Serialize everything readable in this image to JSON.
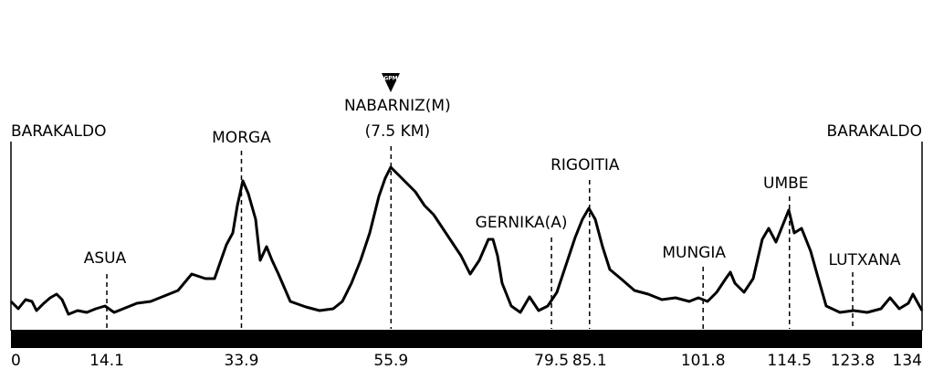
{
  "profile": {
    "gpm_label": "GPM",
    "locations": [
      {
        "name": "BARAKALDO",
        "km": 0
      },
      {
        "name": "ASUA",
        "km": 14.1
      },
      {
        "name": "MORGA",
        "km": 33.9
      },
      {
        "name": "NABARNIZ(M)",
        "detail": "(7.5 KM)",
        "km": 55.9
      },
      {
        "name": "GERNIKA(A)",
        "km": 79.5
      },
      {
        "name": "RIGOITIA",
        "km": 85.1
      },
      {
        "name": "MUNGIA",
        "km": 101.8
      },
      {
        "name": "UMBE",
        "km": 114.5
      },
      {
        "name": "LUTXANA",
        "km": 123.8
      },
      {
        "name": "BARAKALDO",
        "km": 134
      }
    ]
  }
}
